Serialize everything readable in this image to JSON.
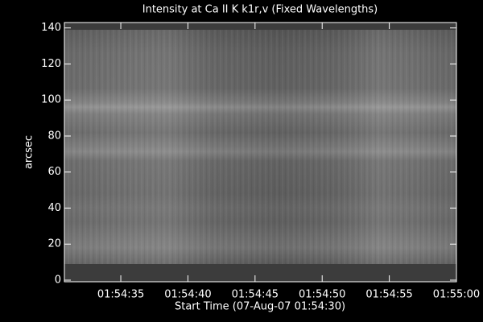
{
  "chart_data": {
    "type": "image",
    "title": "Intensity at Ca II K k1r,v (Fixed Wavelengths)",
    "x_label": "Start Time (07-Aug-07 01:54:30)",
    "y_label": "arcsec",
    "xlim": [
      0.8,
      30
    ],
    "xticks": [
      {
        "value": 5,
        "label": "01:54:35"
      },
      {
        "value": 10,
        "label": "01:54:40"
      },
      {
        "value": 15,
        "label": "01:54:45"
      },
      {
        "value": 20,
        "label": "01:54:50"
      },
      {
        "value": 25,
        "label": "01:54:55"
      },
      {
        "value": 30,
        "label": "01:55:00"
      }
    ],
    "ylim": [
      0,
      143
    ],
    "yticks": [
      0,
      20,
      40,
      60,
      80,
      100,
      120,
      140
    ]
  }
}
